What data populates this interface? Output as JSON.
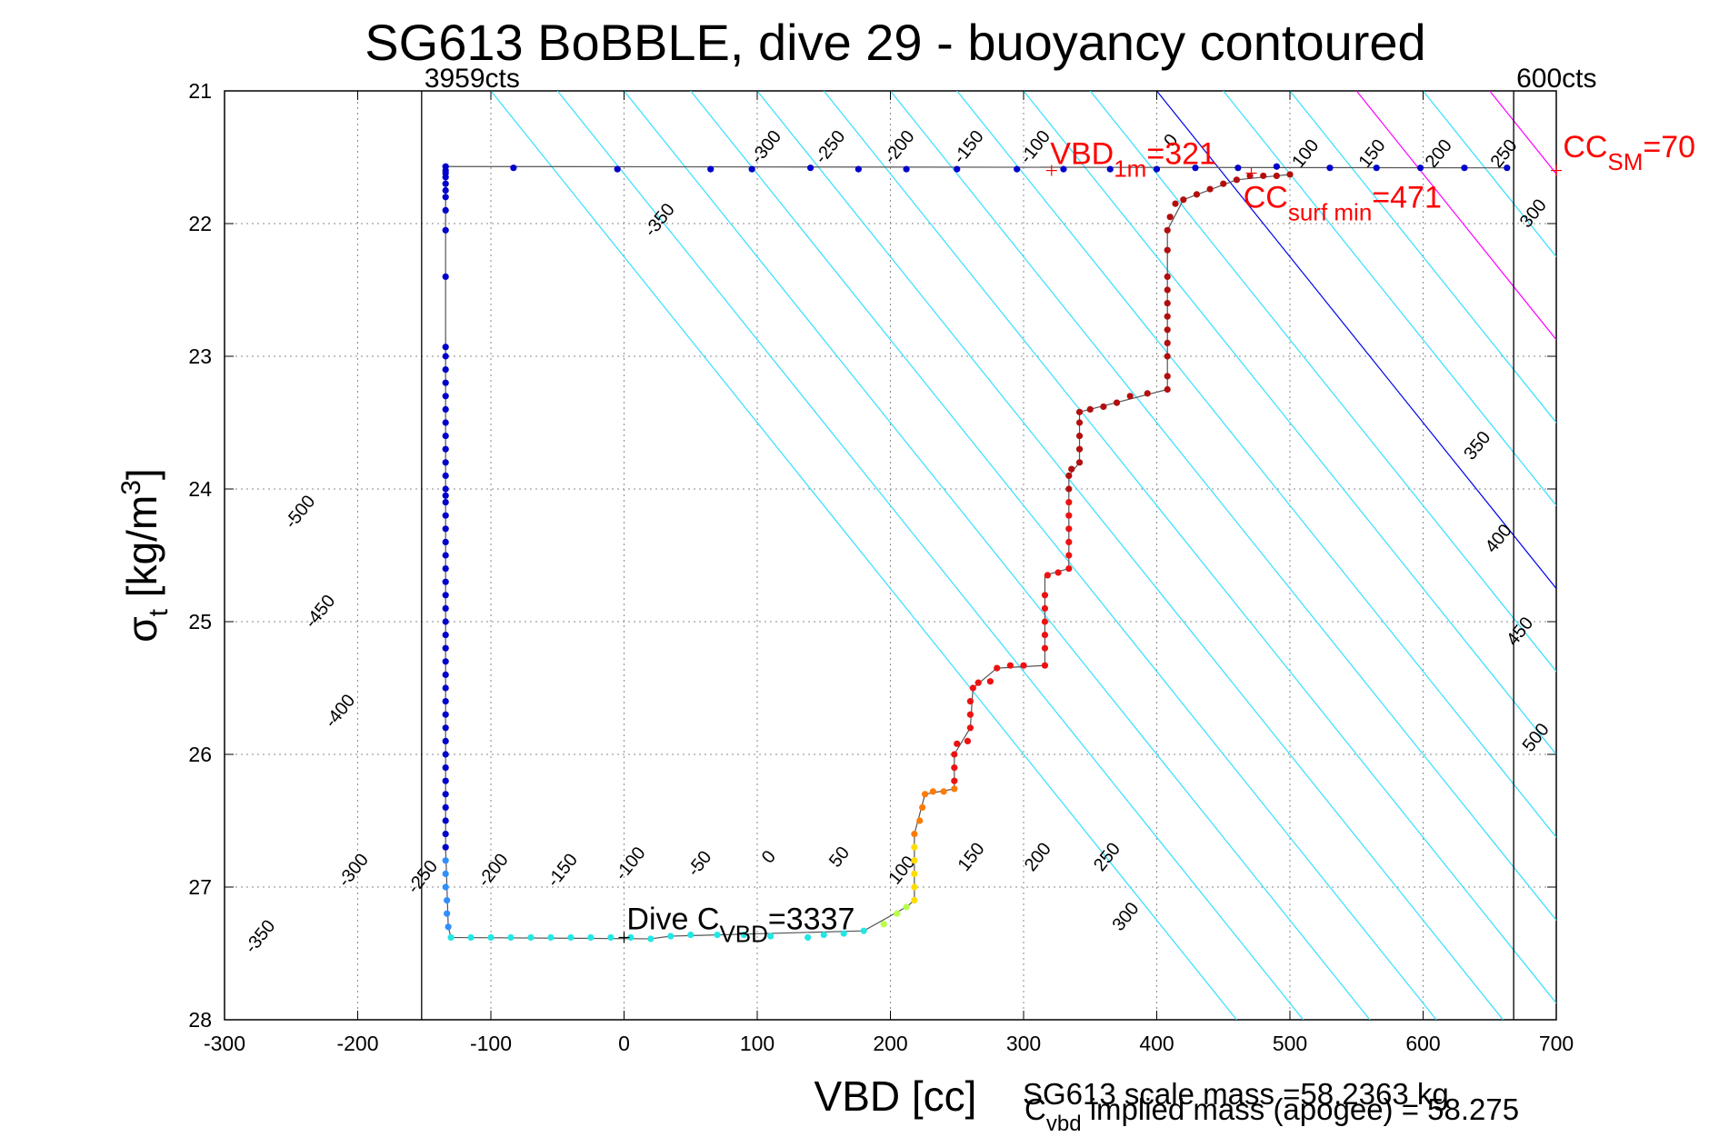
{
  "chart_data": {
    "type": "scatter",
    "title": "SG613 BoBBLE, dive 29 - buoyancy contoured",
    "xlabel": "VBD [cc]",
    "ylabel_main": "σ",
    "ylabel_sub": "t",
    "ylabel_unit": " [kg/m",
    "ylabel_sup": "3",
    "ylabel_close": "]",
    "xlim": [
      -300,
      700
    ],
    "ylim": [
      21,
      28
    ],
    "y_reversed": true,
    "grid": true,
    "x_ticks": [
      "-300",
      "-200",
      "-100",
      "0",
      "100",
      "200",
      "300",
      "400",
      "500",
      "600",
      "700"
    ],
    "x_tick_values": [
      -300,
      -200,
      -100,
      0,
      100,
      200,
      300,
      400,
      500,
      600,
      700
    ],
    "y_ticks": [
      "21",
      "22",
      "23",
      "24",
      "25",
      "26",
      "27",
      "28"
    ],
    "y_tick_values": [
      21,
      22,
      23,
      24,
      25,
      26,
      27,
      28
    ],
    "vertical_limits": [
      {
        "x": -152,
        "label": "3959cts"
      },
      {
        "x": 668,
        "label": "600cts"
      }
    ],
    "contours_top": {
      "slope_y_per_x": 0.0125,
      "offsets": [
        -500,
        -450,
        -400,
        -350,
        -300,
        -250,
        -200,
        -150,
        -100,
        -50,
        0,
        50,
        100,
        150,
        200,
        250,
        300,
        350,
        400,
        450,
        500,
        550,
        600,
        650,
        700,
        750,
        800,
        850,
        900,
        950
      ],
      "zero_x_at_y": [
        21,
        400
      ],
      "labels": [
        {
          "text": "-500",
          "x": -240,
          "y": 24.2
        },
        {
          "text": "-450",
          "x": -225,
          "y": 24.95
        },
        {
          "text": "-400",
          "x": -210,
          "y": 25.7
        },
        {
          "text": "-350",
          "x": 30,
          "y": 22.0
        },
        {
          "text": "-300",
          "x": 110,
          "y": 21.45
        },
        {
          "text": "-250",
          "x": 158,
          "y": 21.45
        },
        {
          "text": "-200",
          "x": 210,
          "y": 21.45
        },
        {
          "text": "-150",
          "x": 262,
          "y": 21.45
        },
        {
          "text": "-100",
          "x": 312,
          "y": 21.45
        },
        {
          "text": "0",
          "x": 414,
          "y": 21.4
        },
        {
          "text": "100",
          "x": 515,
          "y": 21.5
        },
        {
          "text": "150",
          "x": 565,
          "y": 21.5
        },
        {
          "text": "200",
          "x": 615,
          "y": 21.5
        },
        {
          "text": "250",
          "x": 664,
          "y": 21.5
        },
        {
          "text": "300",
          "x": 686,
          "y": 21.95
        },
        {
          "text": "350",
          "x": 644,
          "y": 23.7
        },
        {
          "text": "400",
          "x": 660,
          "y": 24.4
        },
        {
          "text": "450",
          "x": 676,
          "y": 25.1
        },
        {
          "text": "500",
          "x": 688,
          "y": 25.9
        }
      ]
    },
    "contours_bottom_labels": [
      {
        "text": "-350",
        "x": -270,
        "y": 27.4
      },
      {
        "text": "-300",
        "x": -200,
        "y": 26.9
      },
      {
        "text": "-250",
        "x": -148,
        "y": 26.95
      },
      {
        "text": "-200",
        "x": -95,
        "y": 26.9
      },
      {
        "text": "-150",
        "x": -43,
        "y": 26.9
      },
      {
        "text": "-100",
        "x": 8,
        "y": 26.85
      },
      {
        "text": "-50",
        "x": 60,
        "y": 26.85
      },
      {
        "text": "0",
        "x": 112,
        "y": 26.8
      },
      {
        "text": "50",
        "x": 165,
        "y": 26.8
      },
      {
        "text": "100",
        "x": 212,
        "y": 26.9
      },
      {
        "text": "150",
        "x": 264,
        "y": 26.8
      },
      {
        "text": "200",
        "x": 314,
        "y": 26.8
      },
      {
        "text": "250",
        "x": 366,
        "y": 26.8
      },
      {
        "text": "300",
        "x": 380,
        "y": 27.25
      }
    ],
    "series": [
      {
        "color": "#0000cc",
        "points": [
          [
            663,
            21.58
          ],
          [
            631,
            21.58
          ],
          [
            598,
            21.58
          ],
          [
            565,
            21.58
          ],
          [
            530,
            21.58
          ],
          [
            490,
            21.57
          ],
          [
            461,
            21.58
          ],
          [
            429,
            21.58
          ],
          [
            400,
            21.59
          ],
          [
            365,
            21.59
          ],
          [
            330,
            21.59
          ],
          [
            295,
            21.59
          ],
          [
            250,
            21.59
          ],
          [
            212,
            21.59
          ],
          [
            176,
            21.59
          ],
          [
            140,
            21.58
          ],
          [
            96,
            21.59
          ],
          [
            65,
            21.59
          ],
          [
            -5,
            21.59
          ],
          [
            -83,
            21.58
          ],
          [
            -134,
            21.57
          ],
          [
            -134,
            21.6
          ],
          [
            -134,
            21.62
          ],
          [
            -134,
            21.65
          ],
          [
            -134,
            21.7
          ],
          [
            -134,
            21.75
          ],
          [
            -134,
            21.8
          ],
          [
            -134,
            21.9
          ],
          [
            -134,
            22.05
          ],
          [
            -134,
            22.4
          ],
          [
            -134,
            22.93
          ],
          [
            -134,
            23.0
          ],
          [
            -134,
            23.1
          ],
          [
            -134,
            23.2
          ],
          [
            -134,
            23.3
          ],
          [
            -134,
            23.4
          ],
          [
            -134,
            23.5
          ],
          [
            -134,
            23.6
          ],
          [
            -134,
            23.7
          ],
          [
            -134,
            23.8
          ],
          [
            -134,
            23.9
          ],
          [
            -134,
            24.0
          ],
          [
            -134,
            24.05
          ],
          [
            -134,
            24.1
          ],
          [
            -134,
            24.2
          ],
          [
            -134,
            24.3
          ],
          [
            -134,
            24.4
          ],
          [
            -134,
            24.5
          ],
          [
            -134,
            24.6
          ],
          [
            -134,
            24.7
          ],
          [
            -134,
            24.8
          ],
          [
            -134,
            24.9
          ],
          [
            -134,
            25.0
          ],
          [
            -134,
            25.1
          ],
          [
            -134,
            25.2
          ],
          [
            -134,
            25.3
          ],
          [
            -134,
            25.4
          ],
          [
            -134,
            25.5
          ],
          [
            -134,
            25.6
          ],
          [
            -134,
            25.7
          ],
          [
            -134,
            25.8
          ],
          [
            -134,
            25.9
          ],
          [
            -134,
            26.0
          ],
          [
            -134,
            26.1
          ],
          [
            -134,
            26.2
          ],
          [
            -134,
            26.3
          ],
          [
            -134,
            26.4
          ],
          [
            -134,
            26.5
          ],
          [
            -134,
            26.6
          ],
          [
            -134,
            26.7
          ]
        ]
      },
      {
        "color": "#2f8fff",
        "points": [
          [
            -134,
            26.8
          ],
          [
            -134,
            26.9
          ],
          [
            -134,
            27.0
          ],
          [
            -133,
            27.1
          ],
          [
            -133,
            27.2
          ],
          [
            -132,
            27.3
          ]
        ]
      },
      {
        "color": "#22e6e6",
        "points": [
          [
            -130,
            27.38
          ],
          [
            -115,
            27.38
          ],
          [
            -100,
            27.38
          ],
          [
            -85,
            27.38
          ],
          [
            -70,
            27.38
          ],
          [
            -55,
            27.38
          ],
          [
            -40,
            27.38
          ],
          [
            -25,
            27.38
          ],
          [
            -10,
            27.38
          ],
          [
            5,
            27.38
          ],
          [
            20,
            27.39
          ],
          [
            35,
            27.37
          ],
          [
            50,
            27.36
          ],
          [
            70,
            27.36
          ],
          [
            90,
            27.36
          ],
          [
            110,
            27.37
          ],
          [
            138,
            27.38
          ],
          [
            150,
            27.36
          ],
          [
            165,
            27.35
          ],
          [
            180,
            27.33
          ]
        ]
      },
      {
        "color": "#b8ff4a",
        "points": [
          [
            195,
            27.28
          ],
          [
            205,
            27.2
          ],
          [
            212,
            27.15
          ]
        ]
      },
      {
        "color": "#ffdd00",
        "points": [
          [
            218,
            27.1
          ],
          [
            218,
            27.0
          ],
          [
            218,
            26.9
          ],
          [
            218,
            26.8
          ],
          [
            218,
            26.7
          ]
        ]
      },
      {
        "color": "#ff7a00",
        "points": [
          [
            218,
            26.6
          ],
          [
            222,
            26.5
          ],
          [
            224,
            26.4
          ],
          [
            226,
            26.3
          ],
          [
            232,
            26.28
          ],
          [
            240,
            26.28
          ],
          [
            248,
            26.26
          ]
        ]
      },
      {
        "color": "#ee1111",
        "points": [
          [
            248,
            26.2
          ],
          [
            248,
            26.1
          ],
          [
            248,
            26.0
          ],
          [
            250,
            25.92
          ],
          [
            258,
            25.9
          ],
          [
            260,
            25.8
          ],
          [
            260,
            25.7
          ],
          [
            260,
            25.6
          ],
          [
            262,
            25.5
          ],
          [
            266,
            25.46
          ],
          [
            275,
            25.45
          ],
          [
            280,
            25.35
          ],
          [
            290,
            25.33
          ],
          [
            300,
            25.33
          ],
          [
            316,
            25.33
          ],
          [
            316,
            25.2
          ],
          [
            316,
            25.1
          ],
          [
            316,
            25.0
          ],
          [
            316,
            24.9
          ],
          [
            316,
            24.8
          ],
          [
            318,
            24.65
          ],
          [
            326,
            24.63
          ],
          [
            334,
            24.6
          ],
          [
            334,
            24.5
          ],
          [
            334,
            24.4
          ],
          [
            334,
            24.3
          ],
          [
            334,
            24.2
          ],
          [
            334,
            24.1
          ]
        ]
      },
      {
        "color": "#b30e0e",
        "points": [
          [
            334,
            24.0
          ],
          [
            334,
            23.9
          ],
          [
            336,
            23.85
          ],
          [
            342,
            23.8
          ],
          [
            342,
            23.7
          ],
          [
            342,
            23.6
          ],
          [
            342,
            23.5
          ],
          [
            342,
            23.42
          ],
          [
            350,
            23.4
          ],
          [
            360,
            23.38
          ],
          [
            370,
            23.35
          ],
          [
            380,
            23.3
          ],
          [
            393,
            23.28
          ],
          [
            408,
            23.25
          ],
          [
            408,
            23.15
          ],
          [
            408,
            23.0
          ],
          [
            408,
            22.9
          ],
          [
            408,
            22.8
          ],
          [
            408,
            22.7
          ],
          [
            408,
            22.6
          ],
          [
            408,
            22.5
          ],
          [
            408,
            22.4
          ],
          [
            408,
            22.2
          ],
          [
            408,
            22.05
          ],
          [
            410,
            21.95
          ],
          [
            414,
            21.85
          ],
          [
            420,
            21.82
          ],
          [
            430,
            21.78
          ],
          [
            440,
            21.74
          ],
          [
            450,
            21.7
          ],
          [
            460,
            21.67
          ],
          [
            470,
            21.64
          ],
          [
            480,
            21.64
          ],
          [
            490,
            21.64
          ],
          [
            500,
            21.63
          ]
        ]
      }
    ],
    "path_line": [
      [
        663,
        21.58
      ],
      [
        -134,
        21.57
      ],
      [
        -134,
        26.7
      ],
      [
        -132,
        27.3
      ],
      [
        -130,
        27.38
      ],
      [
        20,
        27.39
      ],
      [
        35,
        27.37
      ],
      [
        180,
        27.33
      ],
      [
        212,
        27.15
      ],
      [
        218,
        27.1
      ],
      [
        218,
        26.6
      ],
      [
        226,
        26.3
      ],
      [
        248,
        26.26
      ],
      [
        248,
        26.0
      ],
      [
        260,
        25.8
      ],
      [
        262,
        25.5
      ],
      [
        280,
        25.35
      ],
      [
        316,
        25.33
      ],
      [
        316,
        24.65
      ],
      [
        334,
        24.6
      ],
      [
        334,
        23.9
      ],
      [
        342,
        23.8
      ],
      [
        342,
        23.42
      ],
      [
        408,
        23.25
      ],
      [
        408,
        22.05
      ],
      [
        420,
        21.82
      ],
      [
        460,
        21.67
      ],
      [
        500,
        21.63
      ]
    ],
    "annotations": [
      {
        "id": "vbd1m",
        "text_main": "VBD",
        "text_sub": "1m",
        "text_value": "=321",
        "color": "#ff0000",
        "x": 320,
        "y": 21.55,
        "marker_x": 321,
        "marker_y": 21.6
      },
      {
        "id": "ccsurf",
        "text_main": "CC",
        "text_sub": "surf min",
        "text_value": "=471",
        "color": "#ff0000",
        "x": 465,
        "y": 21.88,
        "marker_x": 471,
        "marker_y": 21.62
      },
      {
        "id": "ccsm",
        "text_main": "CC",
        "text_sub": "SM",
        "text_value": "=70",
        "color": "#ff0000",
        "x": 705,
        "y": 21.5,
        "marker_x": 700,
        "marker_y": 21.6
      },
      {
        "id": "divec",
        "text_main": "Dive C",
        "text_sub": "VBD",
        "text_value": "=3337",
        "color": "#000000",
        "x": 2,
        "y": 27.32,
        "marker_x": 0,
        "marker_y": 27.38
      }
    ],
    "footer_line1": "SG613 scale mass =58.2363 kg",
    "footer_line2_main": "C",
    "footer_line2_sub": "vbd",
    "footer_line2_rest": " implied mass (apogee) = 58.275"
  }
}
